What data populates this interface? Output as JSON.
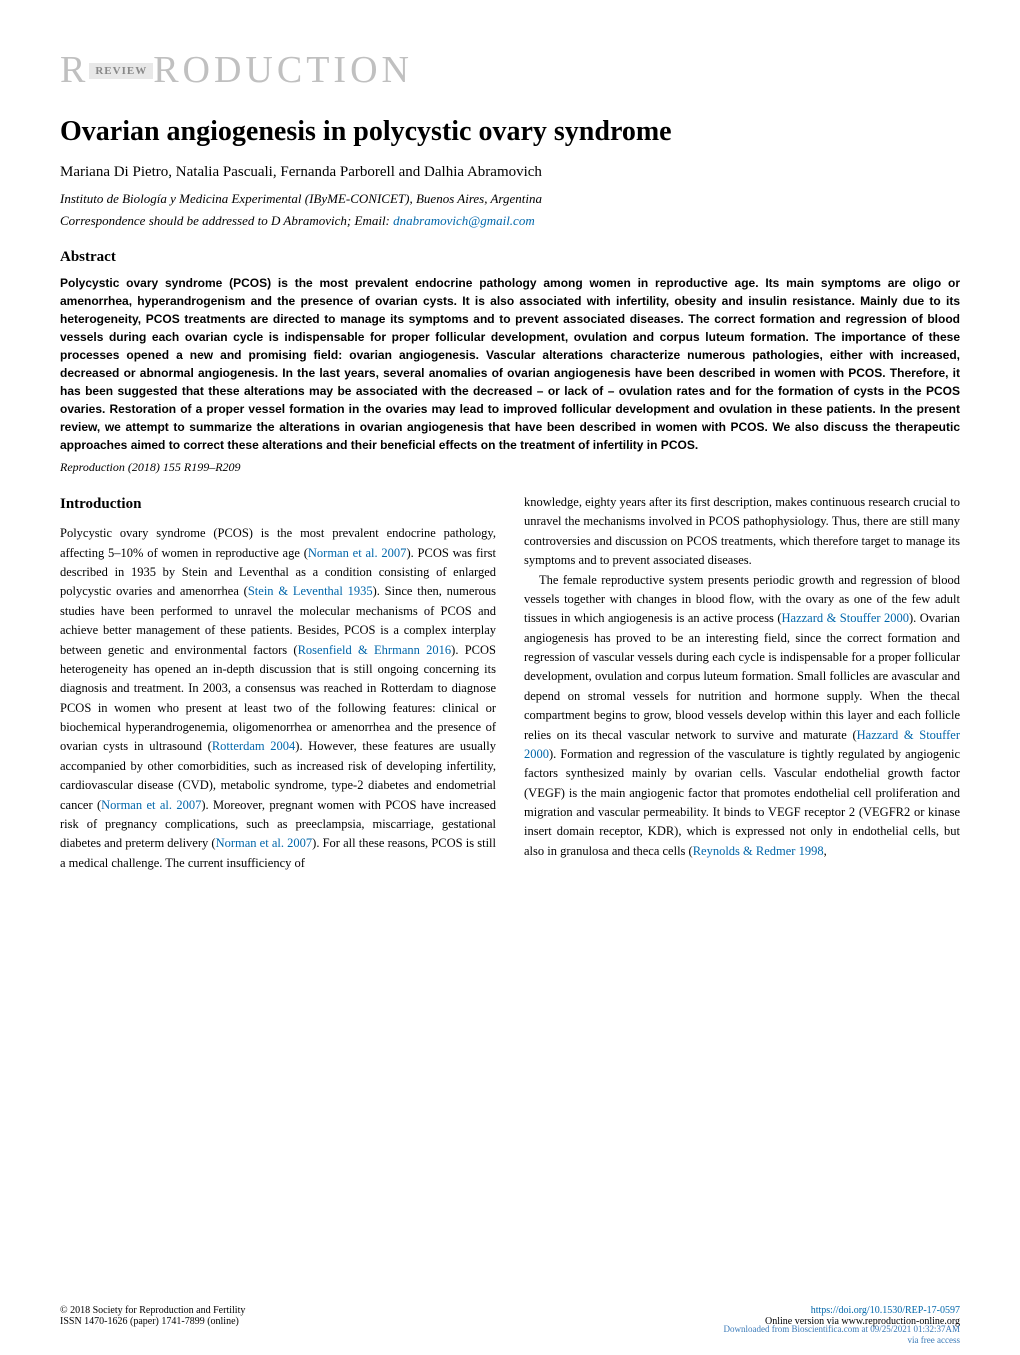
{
  "header": {
    "review_label": "REVIEW",
    "logo_text": "RODUCTION",
    "logo_prefix": "R"
  },
  "title": "Ovarian angiogenesis in polycystic ovary syndrome",
  "authors": "Mariana Di Pietro, Natalia Pascuali, Fernanda Parborell and Dalhia Abramovich",
  "affiliation": "Instituto de Biología y Medicina Experimental (IByME-CONICET), Buenos Aires, Argentina",
  "correspondence_text": "Correspondence should be addressed to D Abramovich; Email: ",
  "correspondence_email": "dnabramovich@gmail.com",
  "abstract": {
    "heading": "Abstract",
    "text": "Polycystic ovary syndrome (PCOS) is the most prevalent endocrine pathology among women in reproductive age. Its main symptoms are oligo or amenorrhea, hyperandrogenism and the presence of ovarian cysts. It is also associated with infertility, obesity and insulin resistance. Mainly due to its heterogeneity, PCOS treatments are directed to manage its symptoms and to prevent associated diseases. The correct formation and regression of blood vessels during each ovarian cycle is indispensable for proper follicular development, ovulation and corpus luteum formation. The importance of these processes opened a new and promising field: ovarian angiogenesis. Vascular alterations characterize numerous pathologies, either with increased, decreased or abnormal angiogenesis. In the last years, several anomalies of ovarian angiogenesis have been described in women with PCOS. Therefore, it has been suggested that these alterations may be associated with the decreased – or lack of – ovulation rates and for the formation of cysts in the PCOS ovaries. Restoration of a proper vessel formation in the ovaries may lead to improved follicular development and ovulation in these patients. In the present review, we attempt to summarize the alterations in ovarian angiogenesis that have been described in women with PCOS. We also discuss the therapeutic approaches aimed to correct these alterations and their beneficial effects on the treatment of infertility in PCOS."
  },
  "reproduction_line": "Reproduction (2018) 155 R199–R209",
  "introduction": {
    "heading": "Introduction",
    "left_p1_a": "Polycystic ovary syndrome (PCOS) is the most prevalent endocrine pathology, affecting 5–10% of women in reproductive age (",
    "left_p1_cite1": "Norman et al. 2007",
    "left_p1_b": "). PCOS was first described in 1935 by Stein and Leventhal as a condition consisting of enlarged polycystic ovaries and amenorrhea (",
    "left_p1_cite2": "Stein & Leventhal 1935",
    "left_p1_c": "). Since then, numerous studies have been performed to unravel the molecular mechanisms of PCOS and achieve better management of these patients. Besides, PCOS is a complex interplay between genetic and environmental factors (",
    "left_p1_cite3": "Rosenfield & Ehrmann 2016",
    "left_p1_d": "). PCOS heterogeneity has opened an in-depth discussion that is still ongoing concerning its diagnosis and treatment. In 2003, a consensus was reached in Rotterdam to diagnose PCOS in women who present at least two of the following features: clinical or biochemical hyperandrogenemia, oligomenorrhea or amenorrhea and the presence of ovarian cysts in ultrasound (",
    "left_p1_cite4": "Rotterdam 2004",
    "left_p1_e": "). However, these features are usually accompanied by other comorbidities, such as increased risk of developing infertility, cardiovascular disease (CVD), metabolic syndrome, type-2 diabetes and endometrial cancer (",
    "left_p1_cite5": "Norman et al. 2007",
    "left_p1_f": "). Moreover, pregnant women with PCOS have increased risk of pregnancy complications, such as preeclampsia, miscarriage, gestational diabetes and preterm delivery (",
    "left_p1_cite6": "Norman et al. 2007",
    "left_p1_g": "). For all these reasons, PCOS is still a medical challenge. The current insufficiency of",
    "right_p1": "knowledge, eighty years after its first description, makes continuous research crucial to unravel the mechanisms involved in PCOS pathophysiology. Thus, there are still many controversies and discussion on PCOS treatments, which therefore target to manage its symptoms and to prevent associated diseases.",
    "right_p2_a": "The female reproductive system presents periodic growth and regression of blood vessels together with changes in blood flow, with the ovary as one of the few adult tissues in which angiogenesis is an active process (",
    "right_p2_cite1": "Hazzard & Stouffer 2000",
    "right_p2_b": "). Ovarian angiogenesis has proved to be an interesting field, since the correct formation and regression of vascular vessels during each cycle is indispensable for a proper follicular development, ovulation and corpus luteum formation. Small follicles are avascular and depend on stromal vessels for nutrition and hormone supply. When the thecal compartment begins to grow, blood vessels develop within this layer and each follicle relies on its thecal vascular network to survive and maturate (",
    "right_p2_cite2": "Hazzard & Stouffer 2000",
    "right_p2_c": "). Formation and regression of the vasculature is tightly regulated by angiogenic factors synthesized mainly by ovarian cells. Vascular endothelial growth factor (VEGF) is the main angiogenic factor that promotes endothelial cell proliferation and migration and vascular permeability. It binds to VEGF receptor 2 (VEGFR2 or kinase insert domain receptor, KDR), which is expressed not only in endothelial cells, but also in granulosa and theca cells (",
    "right_p2_cite3": "Reynolds & Redmer 1998",
    "right_p2_d": ","
  },
  "footer": {
    "copyright": "© 2018 Society for Reproduction and Fertility",
    "issn": "ISSN 1470-1626 (paper) 1741-7899 (online)",
    "doi": "https://doi.org/10.1530/REP-17-0597",
    "online": "Online version via www.reproduction-online.org"
  },
  "watermark": {
    "line1": "Downloaded from Bioscientifica.com at 09/25/2021 01:32:37AM",
    "line2": "via free access"
  },
  "colors": {
    "link": "#0066aa",
    "logo_gray": "#c0c0c0",
    "watermark_blue": "#3a7ab8"
  }
}
